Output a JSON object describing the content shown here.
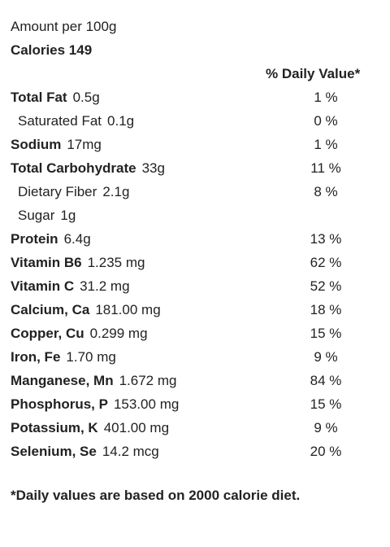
{
  "amount_per": "Amount per 100g",
  "calories": "Calories 149",
  "dv_header": "% Daily Value*",
  "rows": [
    {
      "name": "Total Fat",
      "amount": "0.5g",
      "pct": "1 %",
      "indent": false
    },
    {
      "name": "Saturated Fat",
      "amount": "0.1g",
      "pct": "0 %",
      "indent": true
    },
    {
      "name": "Sodium",
      "amount": "17mg",
      "pct": "1 %",
      "indent": false
    },
    {
      "name": "Total Carbohydrate",
      "amount": "33g",
      "pct": "11 %",
      "indent": false
    },
    {
      "name": "Dietary Fiber",
      "amount": "2.1g",
      "pct": "8 %",
      "indent": true
    },
    {
      "name": "Sugar",
      "amount": "1g",
      "pct": "",
      "indent": true
    },
    {
      "name": "Protein",
      "amount": "6.4g",
      "pct": "13 %",
      "indent": false
    },
    {
      "name": "Vitamin B6",
      "amount": "1.235 mg",
      "pct": "62 %",
      "indent": false
    },
    {
      "name": "Vitamin C",
      "amount": "31.2 mg",
      "pct": "52 %",
      "indent": false
    },
    {
      "name": "Calcium, Ca",
      "amount": "181.00 mg",
      "pct": "18 %",
      "indent": false
    },
    {
      "name": "Copper, Cu",
      "amount": "0.299 mg",
      "pct": "15 %",
      "indent": false
    },
    {
      "name": "Iron, Fe",
      "amount": "1.70 mg",
      "pct": "9 %",
      "indent": false
    },
    {
      "name": "Manganese, Mn",
      "amount": "1.672 mg",
      "pct": "84 %",
      "indent": false
    },
    {
      "name": "Phosphorus, P",
      "amount": "153.00 mg",
      "pct": "15 %",
      "indent": false
    },
    {
      "name": "Potassium, K",
      "amount": "401.00 mg",
      "pct": "9 %",
      "indent": false
    },
    {
      "name": "Selenium, Se",
      "amount": "14.2 mcg",
      "pct": "20 %",
      "indent": false
    }
  ],
  "footnote": "*Daily values are based on 2000 calorie diet."
}
